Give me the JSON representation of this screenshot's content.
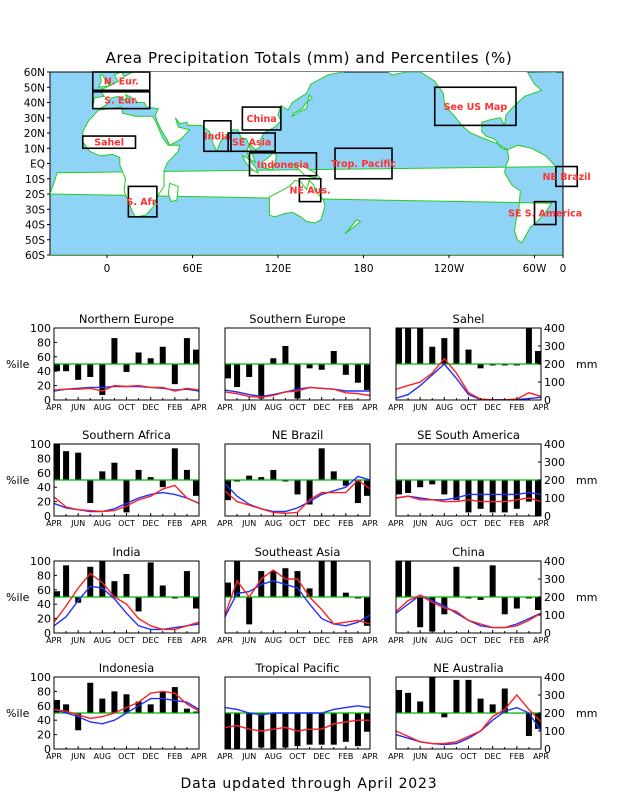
{
  "title": "Area Precipitation Totals (mm) and Percentiles (%)",
  "footer": "Data updated through April 2023",
  "map": {
    "lat_labels": [
      "60N",
      "50N",
      "40N",
      "30N",
      "20N",
      "10N",
      "EQ",
      "10S",
      "20S",
      "30S",
      "40S",
      "50S",
      "60S"
    ],
    "lon_labels": [
      "0",
      "60E",
      "120E",
      "180",
      "120W",
      "60W",
      "0"
    ],
    "ocean_color": "#8fd3f7",
    "land_color": "#ffffff",
    "coast_color": "#22cc22",
    "box_label_color": "#ff3030",
    "regions": [
      {
        "label": "N. Eur.",
        "lon": [
          -10,
          30
        ],
        "lat": [
          48,
          60
        ]
      },
      {
        "label": "S. Eur.",
        "lon": [
          -10,
          30
        ],
        "lat": [
          36,
          47
        ]
      },
      {
        "label": "Sahel",
        "lon": [
          -17,
          20
        ],
        "lat": [
          10,
          18
        ]
      },
      {
        "label": "India",
        "lon": [
          68,
          87
        ],
        "lat": [
          8,
          28
        ]
      },
      {
        "label": "China",
        "lon": [
          95,
          122
        ],
        "lat": [
          22,
          37
        ]
      },
      {
        "label": "SE Asia",
        "lon": [
          85,
          118
        ],
        "lat": [
          8,
          20
        ]
      },
      {
        "label": "Indonesia",
        "lon": [
          100,
          147
        ],
        "lat": [
          -8,
          7
        ]
      },
      {
        "label": "Trop. Pacific",
        "lon": [
          160,
          200
        ],
        "lat": [
          -10,
          10
        ]
      },
      {
        "label": "NE Aus.",
        "lon": [
          135,
          150
        ],
        "lat": [
          -25,
          -10
        ]
      },
      {
        "label": "S. Afr.",
        "lon": [
          15,
          35
        ],
        "lat": [
          -35,
          -15
        ]
      },
      {
        "label": "See US Map",
        "lon": [
          230,
          287
        ],
        "lat": [
          25,
          50
        ]
      },
      {
        "label": "NE Brazil",
        "lon": [
          315,
          330
        ],
        "lat": [
          -15,
          -2
        ]
      },
      {
        "label": "SE S. America",
        "lon": [
          300,
          315
        ],
        "lat": [
          -40,
          -25
        ]
      }
    ]
  },
  "axis": {
    "pct_ticks": [
      "0",
      "20",
      "40",
      "60",
      "80",
      "100"
    ],
    "mm_ticks": [
      "0",
      "100",
      "200",
      "300",
      "400"
    ],
    "pct_label": "%ile",
    "mm_label": "mm",
    "month_ticks": [
      "APR",
      "JUN",
      "AUG",
      "OCT",
      "DEC",
      "FEB",
      "APR"
    ],
    "bar_color": "#000000",
    "line50_color": "#00bb00",
    "observed_color": "#ff2020",
    "normal_color": "#2030ff"
  },
  "chart_data": [
    {
      "type": "bar+line",
      "title": "Northern Europe",
      "ylim_pct": [
        0,
        100
      ],
      "ylim_mm": [
        0,
        400
      ],
      "months": [
        "APR",
        "MAY",
        "JUN",
        "JUL",
        "AUG",
        "SEP",
        "OCT",
        "NOV",
        "DEC",
        "JAN",
        "FEB",
        "MAR",
        "APR"
      ],
      "percentile": [
        40,
        40,
        28,
        32,
        7,
        86,
        39,
        66,
        58,
        74,
        22,
        86,
        70
      ],
      "observed_mm": [
        55,
        60,
        60,
        65,
        50,
        80,
        75,
        80,
        70,
        70,
        50,
        65,
        55
      ],
      "normal_mm": [
        50,
        60,
        65,
        70,
        70,
        75,
        75,
        75,
        70,
        65,
        55,
        60,
        50
      ]
    },
    {
      "type": "bar+line",
      "title": "Southern Europe",
      "ylim_pct": [
        0,
        100
      ],
      "ylim_mm": [
        0,
        400
      ],
      "months": [
        "APR",
        "MAY",
        "JUN",
        "JUL",
        "AUG",
        "SEP",
        "OCT",
        "NOV",
        "DEC",
        "JAN",
        "FEB",
        "MAR",
        "APR"
      ],
      "percentile": [
        30,
        18,
        32,
        2,
        58,
        75,
        2,
        44,
        42,
        68,
        35,
        24,
        14
      ],
      "observed_mm": [
        45,
        35,
        20,
        15,
        25,
        45,
        50,
        70,
        65,
        60,
        40,
        35,
        25
      ],
      "normal_mm": [
        55,
        45,
        30,
        20,
        30,
        45,
        60,
        70,
        65,
        60,
        50,
        50,
        50
      ]
    },
    {
      "type": "bar+line",
      "title": "Sahel",
      "ylim_pct": [
        0,
        100
      ],
      "ylim_mm": [
        0,
        400
      ],
      "months": [
        "APR",
        "MAY",
        "JUN",
        "JUL",
        "AUG",
        "SEP",
        "OCT",
        "NOV",
        "DEC",
        "JAN",
        "FEB",
        "MAR",
        "APR"
      ],
      "percentile": [
        100,
        100,
        100,
        74,
        86,
        100,
        70,
        44,
        48,
        48,
        48,
        100,
        68
      ],
      "observed_mm": [
        60,
        80,
        100,
        150,
        230,
        150,
        40,
        5,
        1,
        1,
        5,
        40,
        20
      ],
      "normal_mm": [
        10,
        30,
        80,
        140,
        200,
        120,
        30,
        3,
        1,
        1,
        2,
        8,
        15
      ]
    },
    {
      "type": "bar+line",
      "title": "Southern Africa",
      "ylim_pct": [
        0,
        100
      ],
      "ylim_mm": [
        0,
        400
      ],
      "months": [
        "APR",
        "MAY",
        "JUN",
        "JUL",
        "AUG",
        "SEP",
        "OCT",
        "NOV",
        "DEC",
        "JAN",
        "FEB",
        "MAR",
        "APR"
      ],
      "percentile": [
        100,
        90,
        88,
        18,
        62,
        74,
        5,
        64,
        54,
        40,
        94,
        64,
        28
      ],
      "observed_mm": [
        105,
        50,
        35,
        30,
        25,
        30,
        55,
        90,
        110,
        150,
        170,
        100,
        70
      ],
      "normal_mm": [
        70,
        45,
        35,
        25,
        25,
        40,
        70,
        100,
        120,
        130,
        120,
        100,
        70
      ]
    },
    {
      "type": "bar+line",
      "title": "NE Brazil",
      "ylim_pct": [
        0,
        100
      ],
      "ylim_mm": [
        0,
        400
      ],
      "months": [
        "APR",
        "MAY",
        "JUN",
        "JUL",
        "AUG",
        "SEP",
        "OCT",
        "NOV",
        "DEC",
        "JAN",
        "FEB",
        "MAR",
        "APR"
      ],
      "percentile": [
        22,
        48,
        56,
        54,
        64,
        48,
        30,
        16,
        94,
        62,
        42,
        18,
        28
      ],
      "observed_mm": [
        140,
        80,
        60,
        40,
        20,
        15,
        20,
        90,
        130,
        130,
        130,
        200,
        150
      ],
      "normal_mm": [
        180,
        110,
        65,
        40,
        25,
        25,
        45,
        80,
        120,
        140,
        160,
        220,
        200
      ]
    },
    {
      "type": "bar+line",
      "title": "SE South America",
      "ylim_pct": [
        0,
        100
      ],
      "ylim_mm": [
        0,
        400
      ],
      "months": [
        "APR",
        "MAY",
        "JUN",
        "JUL",
        "AUG",
        "SEP",
        "OCT",
        "NOV",
        "DEC",
        "JAN",
        "FEB",
        "MAR",
        "APR"
      ],
      "percentile": [
        30,
        32,
        40,
        44,
        30,
        22,
        5,
        10,
        5,
        5,
        10,
        20,
        0
      ],
      "observed_mm": [
        100,
        110,
        90,
        90,
        80,
        80,
        90,
        80,
        80,
        80,
        90,
        100,
        80
      ],
      "normal_mm": [
        100,
        110,
        100,
        90,
        90,
        100,
        120,
        120,
        120,
        120,
        120,
        130,
        120
      ]
    },
    {
      "type": "bar+line",
      "title": "India",
      "ylim_pct": [
        0,
        100
      ],
      "ylim_mm": [
        0,
        400
      ],
      "months": [
        "APR",
        "MAY",
        "JUN",
        "JUL",
        "AUG",
        "SEP",
        "OCT",
        "NOV",
        "DEC",
        "JAN",
        "FEB",
        "MAR",
        "APR"
      ],
      "percentile": [
        58,
        94,
        42,
        92,
        100,
        72,
        82,
        30,
        98,
        66,
        48,
        86,
        34
      ],
      "observed_mm": [
        60,
        150,
        250,
        330,
        280,
        200,
        160,
        80,
        40,
        20,
        20,
        40,
        60
      ],
      "normal_mm": [
        40,
        90,
        180,
        260,
        250,
        190,
        110,
        40,
        20,
        20,
        30,
        40,
        50
      ]
    },
    {
      "type": "bar+line",
      "title": "Southeast Asia",
      "ylim_pct": [
        0,
        100
      ],
      "ylim_mm": [
        0,
        400
      ],
      "months": [
        "APR",
        "MAY",
        "JUN",
        "JUL",
        "AUG",
        "SEP",
        "OCT",
        "NOV",
        "DEC",
        "JAN",
        "FEB",
        "MAR",
        "APR"
      ],
      "percentile": [
        70,
        100,
        12,
        86,
        86,
        90,
        86,
        62,
        100,
        100,
        56,
        48,
        10
      ],
      "observed_mm": [
        100,
        290,
        200,
        300,
        350,
        300,
        300,
        200,
        130,
        50,
        60,
        70,
        50
      ],
      "normal_mm": [
        90,
        220,
        230,
        270,
        290,
        270,
        250,
        160,
        80,
        50,
        40,
        60,
        100
      ]
    },
    {
      "type": "bar+line",
      "title": "China",
      "ylim_pct": [
        0,
        100
      ],
      "ylim_mm": [
        0,
        400
      ],
      "months": [
        "APR",
        "MAY",
        "JUN",
        "JUL",
        "AUG",
        "SEP",
        "OCT",
        "NOV",
        "DEC",
        "JAN",
        "FEB",
        "MAR",
        "APR"
      ],
      "percentile": [
        100,
        100,
        8,
        2,
        26,
        92,
        48,
        46,
        94,
        26,
        34,
        48,
        32
      ],
      "observed_mm": [
        120,
        180,
        210,
        170,
        140,
        120,
        70,
        50,
        30,
        30,
        40,
        70,
        110
      ],
      "normal_mm": [
        110,
        160,
        210,
        180,
        150,
        110,
        70,
        40,
        30,
        30,
        50,
        80,
        110
      ]
    },
    {
      "type": "bar+line",
      "title": "Indonesia",
      "ylim_pct": [
        0,
        100
      ],
      "ylim_mm": [
        0,
        400
      ],
      "months": [
        "APR",
        "MAY",
        "JUN",
        "JUL",
        "AUG",
        "SEP",
        "OCT",
        "NOV",
        "DEC",
        "JAN",
        "FEB",
        "MAR",
        "APR"
      ],
      "percentile": [
        68,
        62,
        26,
        92,
        70,
        80,
        76,
        66,
        62,
        80,
        86,
        56,
        52
      ],
      "observed_mm": [
        220,
        210,
        190,
        170,
        180,
        200,
        230,
        260,
        310,
        320,
        310,
        250,
        210
      ],
      "normal_mm": [
        220,
        200,
        180,
        150,
        140,
        160,
        200,
        240,
        280,
        280,
        270,
        260,
        220
      ]
    },
    {
      "type": "bar+line",
      "title": "Tropical Pacific",
      "ylim_pct": [
        0,
        100
      ],
      "ylim_mm": [
        0,
        400
      ],
      "months": [
        "APR",
        "MAY",
        "JUN",
        "JUL",
        "AUG",
        "SEP",
        "OCT",
        "NOV",
        "DEC",
        "JAN",
        "FEB",
        "MAR",
        "APR"
      ],
      "percentile": [
        0,
        0,
        0,
        2,
        0,
        2,
        4,
        6,
        6,
        6,
        10,
        4,
        24
      ],
      "observed_mm": [
        120,
        130,
        110,
        100,
        110,
        120,
        100,
        110,
        110,
        140,
        150,
        160,
        160
      ],
      "normal_mm": [
        230,
        220,
        200,
        190,
        200,
        200,
        200,
        200,
        200,
        220,
        230,
        240,
        230
      ]
    },
    {
      "type": "bar+line",
      "title": "NE Australia",
      "ylim_pct": [
        0,
        100
      ],
      "ylim_mm": [
        0,
        400
      ],
      "months": [
        "APR",
        "MAY",
        "JUN",
        "JUL",
        "AUG",
        "SEP",
        "OCT",
        "NOV",
        "DEC",
        "JAN",
        "FEB",
        "MAR",
        "APR"
      ],
      "percentile": [
        82,
        78,
        66,
        100,
        44,
        96,
        96,
        70,
        62,
        84,
        50,
        18,
        28
      ],
      "observed_mm": [
        100,
        70,
        40,
        30,
        30,
        40,
        70,
        100,
        180,
        220,
        300,
        220,
        150
      ],
      "normal_mm": [
        80,
        60,
        40,
        30,
        25,
        30,
        60,
        100,
        160,
        210,
        230,
        200,
        100
      ]
    }
  ]
}
